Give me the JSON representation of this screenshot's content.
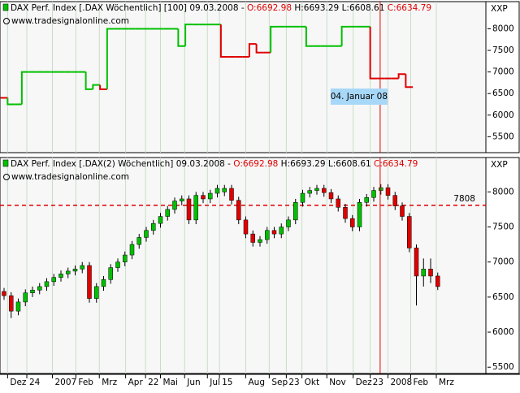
{
  "chart_data": [
    {
      "type": "step",
      "title": "DAX Perf. Index [.DAX Wöchentlich] [100]",
      "date": "09.03.2008 -",
      "ohlc_labels": [
        "O:6692.98",
        "H:6693.29",
        "L:6608.61",
        "C:6634.79"
      ],
      "source": "www.tradesignalonline.com",
      "unit": "XXP",
      "xlim": [
        -0.57,
        67.77
      ],
      "ylim": [
        5130,
        8630
      ],
      "yticks": [
        5500,
        6000,
        6500,
        7000,
        7500,
        8000
      ],
      "values": [
        6400,
        6250,
        6250,
        7000,
        7000,
        7000,
        7000,
        7000,
        7000,
        7000,
        7000,
        7000,
        6600,
        6700,
        6600,
        8000,
        8000,
        8000,
        8000,
        8000,
        8000,
        8000,
        8000,
        8000,
        8000,
        7600,
        8100,
        8100,
        8100,
        8100,
        8100,
        7350,
        7350,
        7350,
        7350,
        7650,
        7450,
        7450,
        8050,
        8050,
        8050,
        8050,
        8050,
        7600,
        7600,
        7600,
        7600,
        7600,
        8050,
        8050,
        8050,
        8050,
        6850,
        6850,
        6850,
        6850,
        6950,
        6650,
        null,
        null,
        null,
        null
      ],
      "colors": [
        "#e00000",
        "#00c000",
        "#00c000",
        "#00c000",
        "#00c000",
        "#00c000",
        "#00c000",
        "#00c000",
        "#00c000",
        "#00c000",
        "#00c000",
        "#00c000",
        "#00c000",
        "#00c000",
        "#e00000",
        "#00c000",
        "#00c000",
        "#00c000",
        "#00c000",
        "#00c000",
        "#00c000",
        "#00c000",
        "#00c000",
        "#00c000",
        "#00c000",
        "#00c000",
        "#00c000",
        "#00c000",
        "#00c000",
        "#00c000",
        "#00c000",
        "#e00000",
        "#e00000",
        "#e00000",
        "#e00000",
        "#e00000",
        "#e00000",
        "#e00000",
        "#00c000",
        "#00c000",
        "#00c000",
        "#00c000",
        "#00c000",
        "#00c000",
        "#00c000",
        "#00c000",
        "#00c000",
        "#00c000",
        "#00c000",
        "#00c000",
        "#00c000",
        "#00c000",
        "#e00000",
        "#e00000",
        "#e00000",
        "#e00000",
        "#e00000",
        "#e00000",
        "#e00000",
        "#e00000",
        "#e00000",
        "#e00000"
      ],
      "cursor": {
        "x": 52.9,
        "label": "04. Januar 08",
        "color": "#e00000"
      }
    },
    {
      "type": "candlestick",
      "title": "DAX Perf. Index [.DAX(2) Wöchentlich]",
      "date": "09.03.2008 -",
      "ohlc_labels": [
        "O:6692.98",
        "H:6693.29",
        "L:6608.61",
        "C:6634.79"
      ],
      "source": "www.tradesignalonline.com",
      "unit": "XXP",
      "xlim": [
        -0.57,
        67.77
      ],
      "ylim": [
        5410,
        8490
      ],
      "yticks": [
        5500,
        6000,
        6500,
        7000,
        7500,
        8000
      ],
      "xticks": [
        {
          "value": 0.5,
          "label": "Dez"
        },
        {
          "value": 3.2,
          "label": "24"
        },
        {
          "value": 6.8,
          "label": "2007"
        },
        {
          "value": 10.1,
          "label": "Feb"
        },
        {
          "value": 13.4,
          "label": "Mrz"
        },
        {
          "value": 17.1,
          "label": "Apr"
        },
        {
          "value": 19.9,
          "label": "22"
        },
        {
          "value": 22,
          "label": "Mai"
        },
        {
          "value": 25.4,
          "label": "Jun"
        },
        {
          "value": 28.6,
          "label": "Jul"
        },
        {
          "value": 30.3,
          "label": "15"
        },
        {
          "value": 34,
          "label": "Aug"
        },
        {
          "value": 37.3,
          "label": "Sep"
        },
        {
          "value": 39.7,
          "label": "23"
        },
        {
          "value": 41.9,
          "label": "Okt"
        },
        {
          "value": 45.4,
          "label": "Nov"
        },
        {
          "value": 49.1,
          "label": "Dez"
        },
        {
          "value": 51.5,
          "label": "23"
        },
        {
          "value": 54,
          "label": "2008"
        },
        {
          "value": 57.2,
          "label": "Feb"
        },
        {
          "value": 60.8,
          "label": "Mrz"
        }
      ],
      "up_color": "#00c000",
      "down_color": "#e00000",
      "open": [
        6580,
        6520,
        6300,
        6430,
        6560,
        6600,
        6650,
        6720,
        6780,
        6830,
        6870,
        6900,
        6950,
        6480,
        6650,
        6750,
        6920,
        7000,
        7100,
        7250,
        7350,
        7450,
        7550,
        7650,
        7750,
        7870,
        7900,
        7600,
        7950,
        7900,
        7980,
        8000,
        8050,
        7880,
        7600,
        7400,
        7280,
        7320,
        7450,
        7400,
        7500,
        7600,
        7850,
        7980,
        8020,
        8050,
        7990,
        7900,
        7780,
        7620,
        7500,
        7850,
        7920,
        8020,
        8060,
        7950,
        7800,
        7650,
        7200,
        6800,
        6900,
        6800
      ],
      "high": [
        6630,
        6570,
        6480,
        6610,
        6650,
        6700,
        6770,
        6830,
        6880,
        6920,
        6950,
        7000,
        7000,
        6700,
        6800,
        6970,
        7050,
        7150,
        7300,
        7400,
        7500,
        7600,
        7700,
        7800,
        7920,
        7950,
        7950,
        8000,
        8000,
        8030,
        8100,
        8100,
        8100,
        7930,
        7650,
        7450,
        7370,
        7500,
        7500,
        7550,
        7650,
        7900,
        8030,
        8070,
        8100,
        8100,
        8040,
        7950,
        7830,
        7670,
        7900,
        7970,
        8070,
        8110,
        8110,
        8000,
        7850,
        7700,
        7250,
        7050,
        7050,
        6850
      ],
      "low": [
        6460,
        6200,
        6240,
        6370,
        6500,
        6540,
        6590,
        6660,
        6720,
        6770,
        6810,
        6840,
        6420,
        6420,
        6590,
        6690,
        6860,
        6940,
        7040,
        7190,
        7290,
        7390,
        7490,
        7590,
        7690,
        7810,
        7540,
        7540,
        7840,
        7840,
        7920,
        7940,
        7820,
        7540,
        7340,
        7220,
        7220,
        7260,
        7340,
        7340,
        7440,
        7540,
        7790,
        7920,
        7960,
        7930,
        7840,
        7720,
        7560,
        7440,
        7440,
        7790,
        7860,
        7960,
        7890,
        7740,
        7590,
        7140,
        6380,
        6650,
        6700,
        6600
      ],
      "close": [
        6520,
        6300,
        6430,
        6560,
        6600,
        6650,
        6720,
        6780,
        6830,
        6870,
        6900,
        6950,
        6480,
        6650,
        6750,
        6920,
        7000,
        7100,
        7250,
        7350,
        7450,
        7550,
        7650,
        7750,
        7870,
        7900,
        7600,
        7950,
        7900,
        7980,
        8050,
        8050,
        7880,
        7600,
        7400,
        7280,
        7320,
        7450,
        7400,
        7500,
        7600,
        7850,
        7980,
        8020,
        8050,
        7990,
        7900,
        7780,
        7620,
        7500,
        7850,
        7920,
        8020,
        8060,
        7950,
        7800,
        7650,
        7200,
        6800,
        6900,
        6800,
        6650
      ],
      "hline": {
        "value": 7808,
        "label": "7808",
        "color": "#e00000"
      }
    }
  ]
}
